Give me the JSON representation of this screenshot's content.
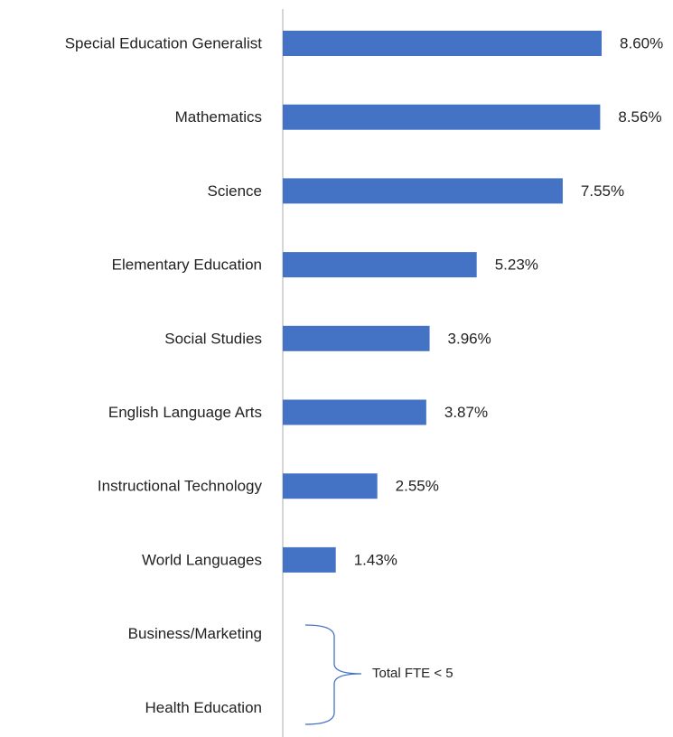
{
  "chart_data": {
    "type": "bar",
    "orientation": "horizontal",
    "categories": [
      "Special Education Generalist",
      "Mathematics",
      "Science",
      "Elementary Education",
      "Social Studies",
      "English Language Arts",
      "Instructional Technology",
      "World Languages",
      "Business/Marketing",
      "Health Education"
    ],
    "values": [
      8.6,
      8.56,
      7.55,
      5.23,
      3.96,
      3.87,
      2.55,
      1.43,
      null,
      null
    ],
    "value_labels": [
      "8.60%",
      "8.56%",
      "7.55%",
      "5.23%",
      "3.96%",
      "3.87%",
      "2.55%",
      "1.43%",
      null,
      null
    ],
    "color": "#4472c4",
    "annotation": "Total FTE < 5"
  }
}
